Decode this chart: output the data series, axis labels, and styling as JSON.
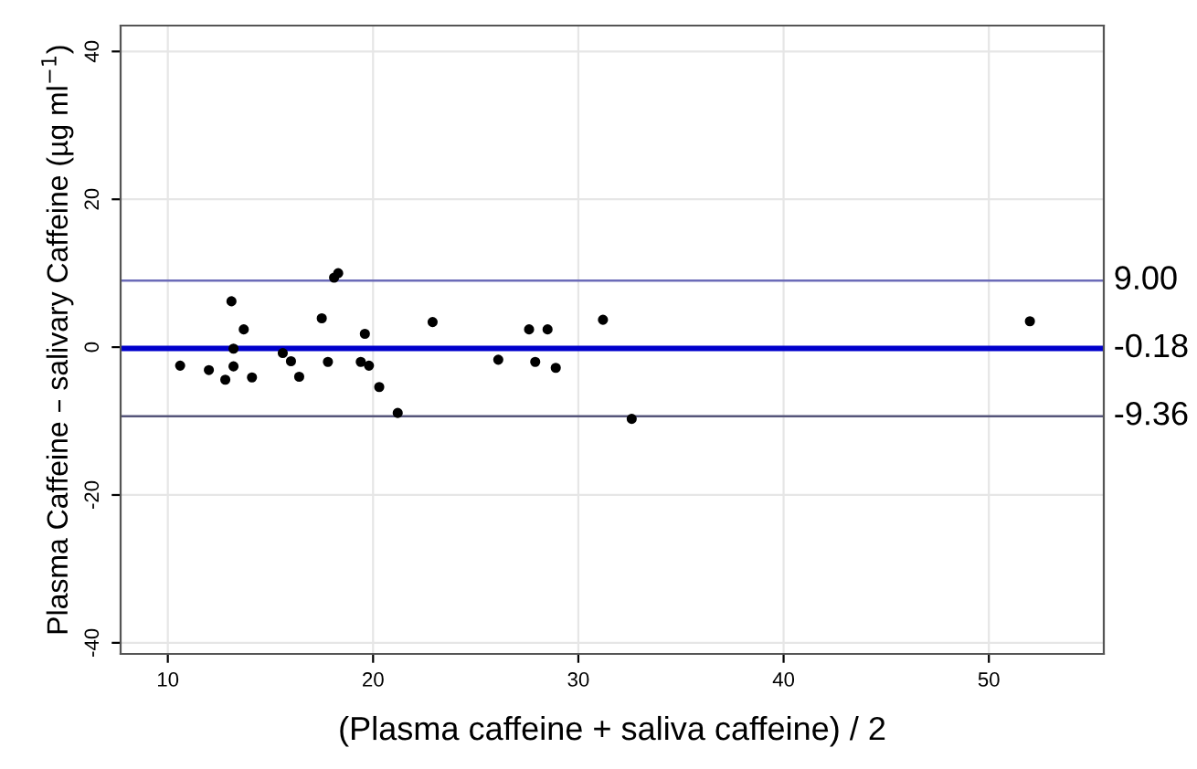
{
  "chart_data": {
    "type": "scatter",
    "xlabel": "(Plasma caffeine + saliva caffeine) / 2",
    "ylabel": "Plasma Caffeine – salivary Caffeine (µg ml$^{−1}$)",
    "x": [
      10.6,
      12.0,
      12.8,
      13.1,
      13.2,
      13.2,
      13.7,
      14.1,
      15.6,
      16.0,
      16.4,
      17.5,
      17.8,
      18.1,
      18.3,
      19.4,
      19.6,
      19.8,
      20.3,
      21.2,
      22.9,
      26.1,
      27.6,
      27.9,
      28.5,
      28.9,
      31.2,
      32.6,
      52.0
    ],
    "series": [
      {
        "color": "#000000",
        "values": [
          -2.5,
          -3.1,
          -4.4,
          6.2,
          -0.2,
          -2.6,
          2.4,
          -4.1,
          -0.8,
          -1.9,
          -4.0,
          3.9,
          -2.0,
          9.4,
          10.0,
          -2.0,
          1.8,
          -2.5,
          -5.4,
          -8.9,
          3.4,
          -1.7,
          2.4,
          -2.0,
          2.4,
          -2.8,
          3.7,
          -9.7,
          3.5
        ]
      }
    ],
    "marker": "circle",
    "xlim": [
      7.7,
      55.6
    ],
    "ylim": [
      -41.5,
      43.5
    ],
    "xticks": [
      10,
      20,
      30,
      40,
      50
    ],
    "yticks": [
      -40,
      -20,
      0,
      20,
      40
    ],
    "grid": true,
    "legend": false,
    "ref_lines": [
      {
        "axis": "y",
        "value": 9.0,
        "label": "9.00",
        "color": "#6b6bb8"
      },
      {
        "axis": "y",
        "value": -0.18,
        "label": "-0.18",
        "color": "#0000cc"
      },
      {
        "axis": "y",
        "value": -9.36,
        "label": "-9.36",
        "color": "#55557a"
      }
    ]
  }
}
